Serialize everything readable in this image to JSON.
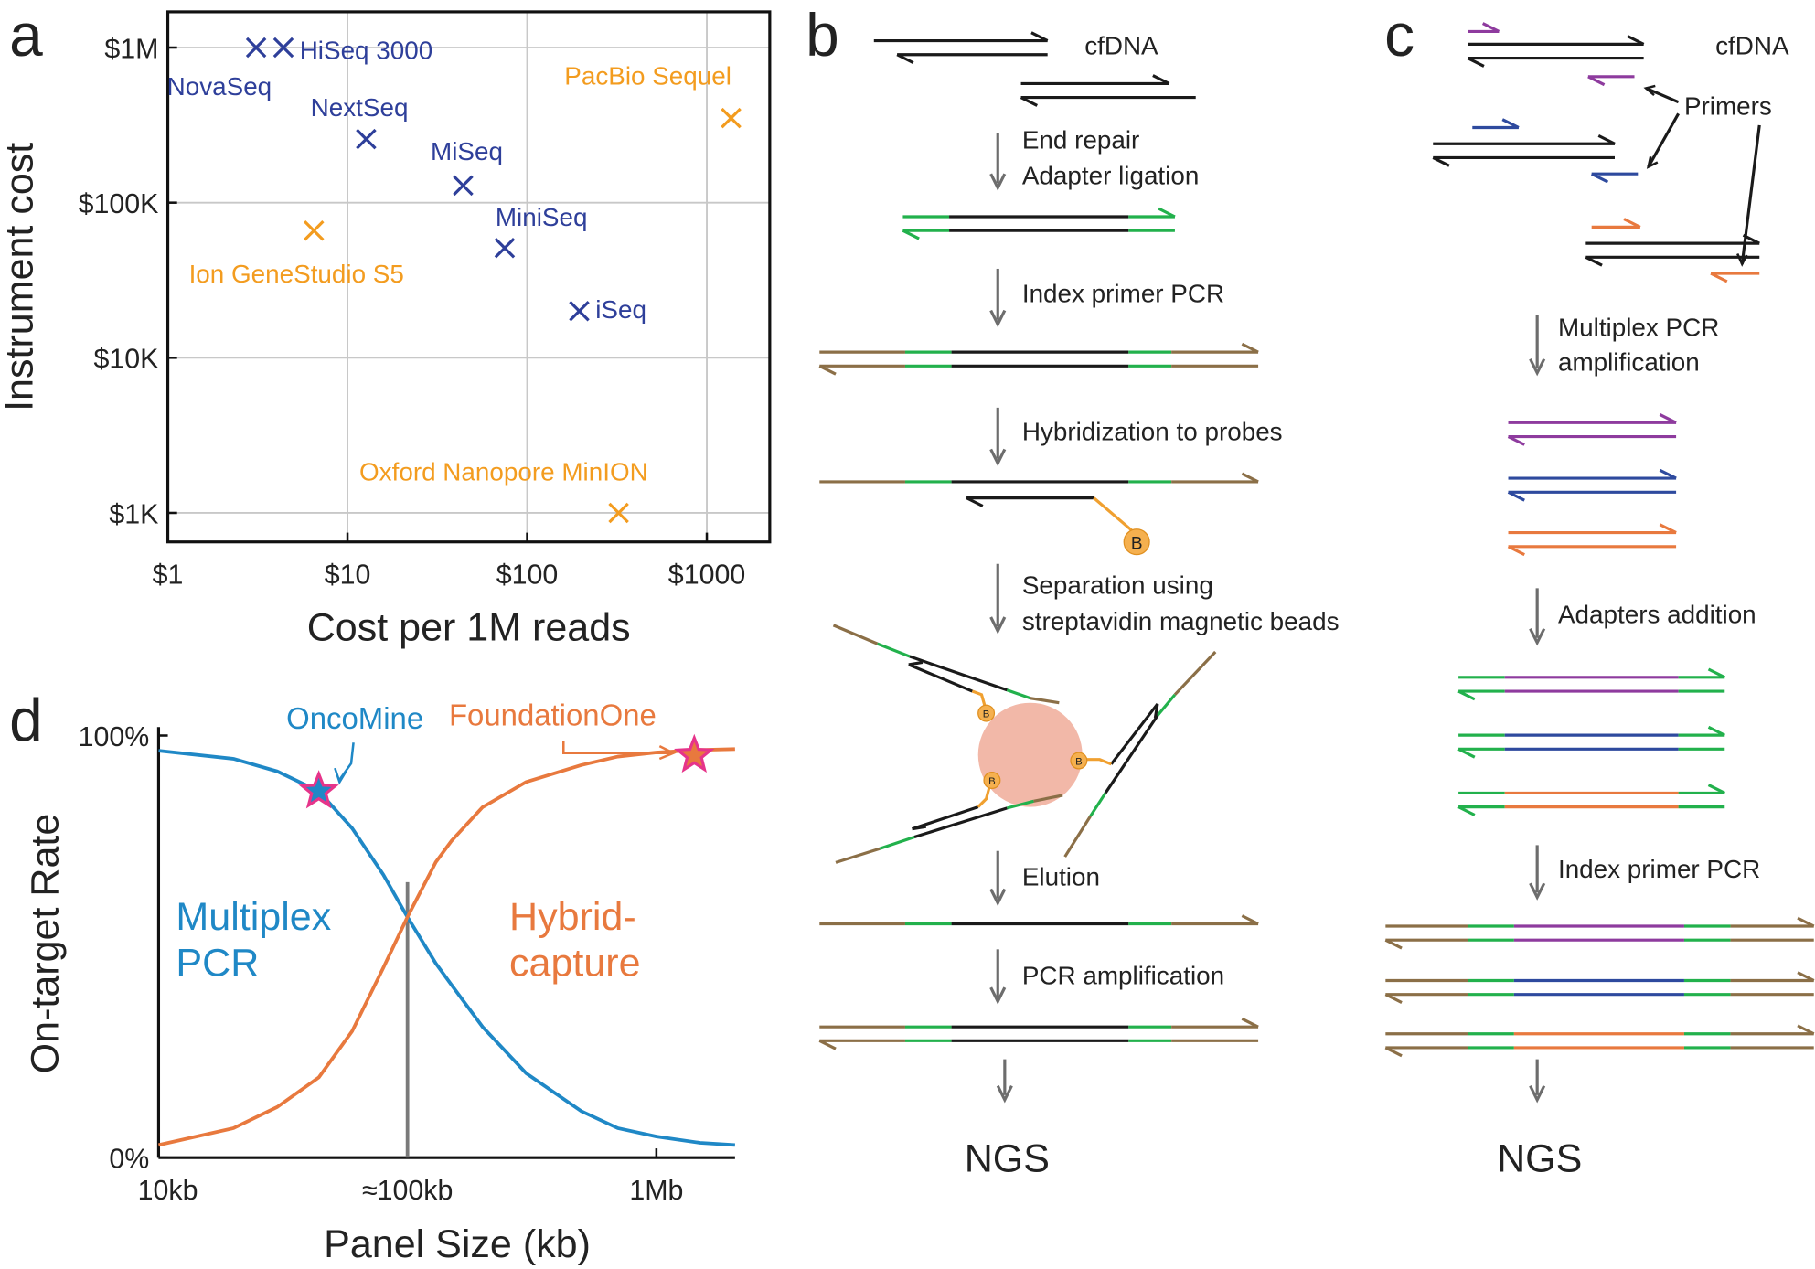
{
  "chart_data": [
    {
      "type": "scatter",
      "panel_label": "a",
      "xlabel": "Cost per 1M reads",
      "ylabel": "Instrument cost",
      "xlog": true,
      "ylog": true,
      "grid": true,
      "xlim": [
        1,
        2240
      ],
      "ylim": [
        650,
        1700000
      ],
      "xticks": [
        {
          "value": 1,
          "label": "$1"
        },
        {
          "value": 10,
          "label": "$10"
        },
        {
          "value": 100,
          "label": "$100"
        },
        {
          "value": 1000,
          "label": "$1000"
        }
      ],
      "yticks": [
        {
          "value": 1000,
          "label": "$1K"
        },
        {
          "value": 10000,
          "label": "$10K"
        },
        {
          "value": 100000,
          "label": "$100K"
        },
        {
          "value": 1000000,
          "label": "$1M"
        }
      ],
      "point_labels": [
        "NovaSeq",
        "HiSeq 3000",
        "NextSeq",
        "MiSeq",
        "MiniSeq",
        "iSeq",
        "PacBio Sequel",
        "Ion GeneStudio S5",
        "Oxford Nanopore MinION"
      ],
      "x": [
        3.1,
        4.4,
        12.7,
        44,
        75,
        195,
        1365,
        6.5,
        323
      ],
      "values": [
        1000000,
        1000000,
        257000,
        129000,
        51000,
        20000,
        351000,
        66000,
        1000
      ],
      "colors": [
        "#2e3f9a",
        "#2e3f9a",
        "#2e3f9a",
        "#2e3f9a",
        "#2e3f9a",
        "#2e3f9a",
        "#f39c1f",
        "#f39c1f",
        "#f39c1f"
      ]
    },
    {
      "type": "line",
      "panel_label": "d",
      "xlabel": "Panel Size (kb)",
      "ylabel": "On-target Rate",
      "xlog": true,
      "xlim": [
        10,
        2070
      ],
      "ylim": [
        0,
        102
      ],
      "xticks": [
        {
          "value": 10,
          "label": "10kb"
        },
        {
          "value": 100,
          "label": "≈100kb"
        },
        {
          "value": 1000,
          "label": "1Mb"
        }
      ],
      "yticks": [
        {
          "value": 0,
          "label": "0%"
        },
        {
          "value": 100,
          "label": "100%"
        }
      ],
      "x": [
        10,
        20,
        30,
        44,
        60,
        80,
        100,
        130,
        150,
        200,
        300,
        500,
        700,
        1000,
        1500,
        2070
      ],
      "series": [
        {
          "color": "#1f88c6",
          "values": [
            96.4,
            94.5,
            91.5,
            86.8,
            78,
            67,
            57,
            46,
            41,
            31,
            20,
            11,
            7,
            5,
            3.5,
            3
          ]
        },
        {
          "color": "#e8793e",
          "values": [
            3,
            7,
            12,
            19,
            30,
            45,
            57,
            70,
            75,
            83,
            89,
            93,
            95,
            96,
            96.6,
            96.8
          ]
        }
      ],
      "vline": 100,
      "region_labels": [
        [
          "Multiplex",
          "PCR"
        ],
        [
          "Hybrid-",
          "capture"
        ]
      ],
      "highlights": [
        {
          "label": "OncoMine",
          "x": 44,
          "y": 86.8
        },
        {
          "label": "FoundationOne",
          "x": 1420,
          "y": 95.3
        }
      ]
    }
  ],
  "panels": {
    "b": {
      "letter": "b",
      "input": "cfDNA",
      "steps": [
        "End repair",
        "Adapter ligation",
        "Index primer PCR",
        "Hybridization to probes",
        "Separation using",
        "streptavidin magnetic beads",
        "Elution",
        "PCR amplification"
      ],
      "bead_label": "B",
      "output": "NGS"
    },
    "c": {
      "letter": "c",
      "input": "cfDNA",
      "primers_label": "Primers",
      "steps": [
        "Multiplex PCR",
        "amplification",
        "Adapters addition",
        "Index primer PCR"
      ],
      "output": "NGS"
    }
  }
}
